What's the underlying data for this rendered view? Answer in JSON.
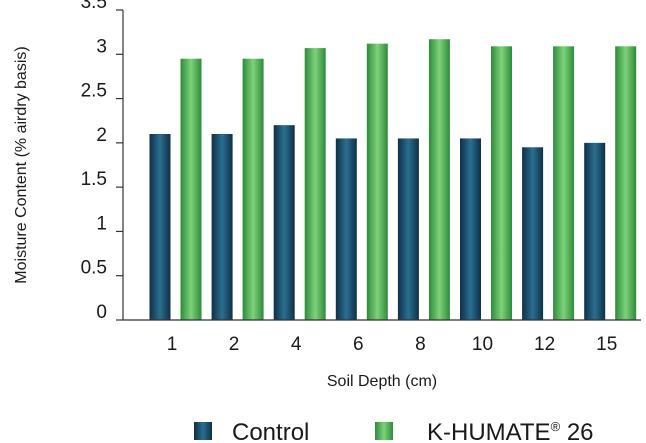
{
  "chart_data": {
    "type": "bar",
    "categories": [
      "1",
      "2",
      "4",
      "6",
      "8",
      "10",
      "12",
      "15"
    ],
    "series": [
      {
        "name": "Control",
        "values": [
          2.1,
          2.1,
          2.2,
          2.05,
          2.05,
          2.05,
          1.95,
          2.0
        ],
        "color": "#1b4f6e"
      },
      {
        "name_main": "K-HUMATE",
        "name_sup": "®",
        "name_suffix": " 26",
        "values": [
          2.95,
          2.95,
          3.07,
          3.12,
          3.17,
          3.09,
          3.09,
          3.09
        ],
        "color": "#4daf4a"
      }
    ],
    "xlabel": "Soil Depth (cm)",
    "ylabel": "Moisture Content (% airdry basis)",
    "ylim": [
      0,
      3.5
    ],
    "yticks": [
      "0",
      "0.5",
      "1",
      "1.5",
      "2",
      "2.5",
      "3",
      "3.5"
    ],
    "grid": false,
    "legend_position": "bottom"
  }
}
